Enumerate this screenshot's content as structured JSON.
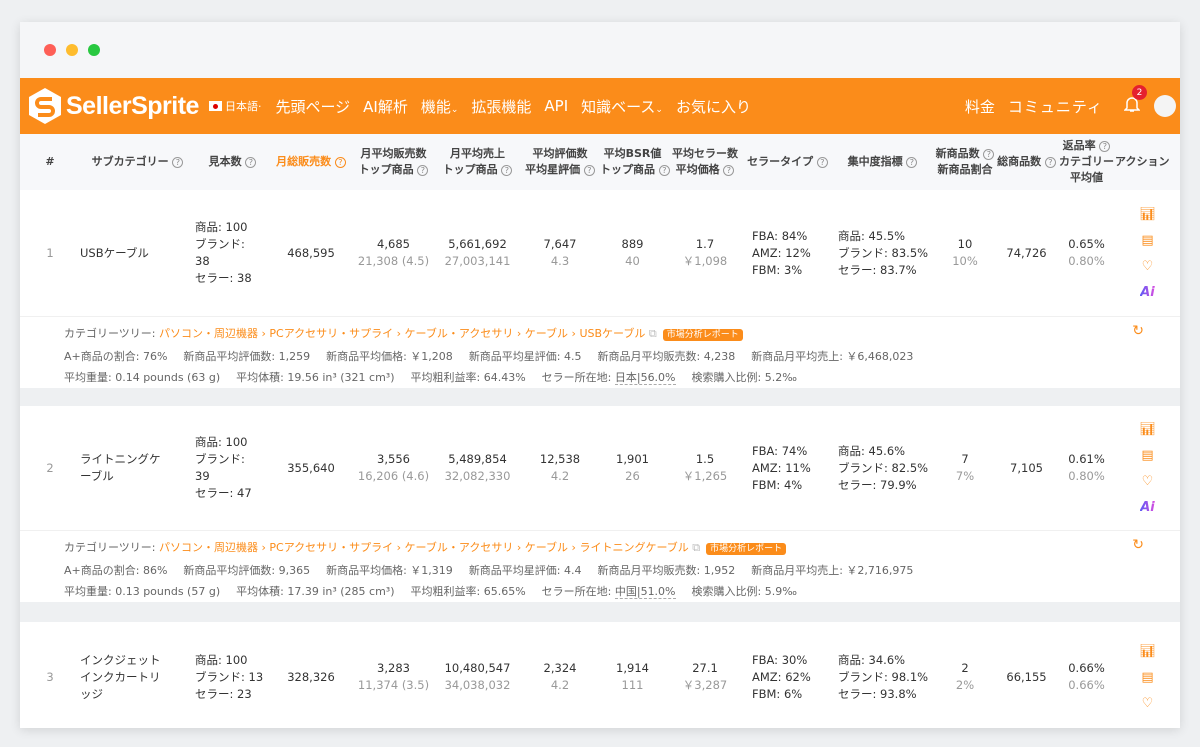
{
  "window": {
    "controls": [
      "close",
      "minimize",
      "maximize"
    ]
  },
  "nav": {
    "brand": "SellerSprite",
    "language": "日本語",
    "items": [
      "先頭ページ",
      "AI解析",
      "機能",
      "拡張機能",
      "API",
      "知識ベース",
      "お気に入り"
    ],
    "right": [
      "料金",
      "コミュニティ"
    ],
    "notifications": "2"
  },
  "header": {
    "cols": [
      "#",
      "サブカテゴリー",
      "見本数",
      "月総販売数",
      "月平均販売数",
      "トップ商品",
      "月平均売上",
      "トップ商品",
      "平均評価数",
      "平均星評価",
      "平均BSR値",
      "トップ商品",
      "平均セラー数",
      "平均価格",
      "セラータイプ",
      "集中度指標",
      "新商品数",
      "新商品割合",
      "総商品数",
      "返品率",
      "カテゴリー",
      "平均値",
      "アクション"
    ]
  },
  "rows": [
    {
      "idx": "1",
      "name": [
        "USBケーブル"
      ],
      "sample": [
        "商品: 100",
        "ブランド:",
        "38",
        "セラー: 38"
      ],
      "total_sales": "468,595",
      "avg_sales": "4,685",
      "avg_sales_top": "21,308 (4.5)",
      "revenue": "5,661,692",
      "revenue_top": "27,003,141",
      "reviews": "7,647",
      "rating": "4.3",
      "bsr": "889",
      "bsr_top": "40",
      "sellers": "1.7",
      "price": "￥1,098",
      "seller_type": [
        "FBA: 84%",
        "AMZ: 12%",
        "FBM: 3%"
      ],
      "concentration": [
        "商品: 45.5%",
        "ブランド: 83.5%",
        "セラー: 83.7%"
      ],
      "new_count": "10",
      "new_ratio": "10%",
      "total_products": "74,726",
      "return_rate": "0.65%",
      "return_cat": "0.80%",
      "tree_label": "カテゴリーツリー: ",
      "tree": "パソコン・周辺機器 › PCアクセサリ・サプライ › ケーブル・アクセサリ › ケーブル › USBケーブル",
      "report": "市場分析レポート",
      "line2": [
        "A+商品の割合: 76%",
        "新商品平均評価数: 1,259",
        "新商品平均価格: ￥1,208",
        "新商品平均星評価: 4.5",
        "新商品月平均販売数: 4,238",
        "新商品月平均売上: ￥6,468,023"
      ],
      "line3": [
        "平均重量: 0.14 pounds (63 g)",
        "平均体積: 19.56 in³ (321 cm³)",
        "平均粗利益率: 64.43%"
      ],
      "seller_loc_label": "セラー所在地: ",
      "seller_loc": "日本|56.0%",
      "search_ratio": "検索購入比例: 5.2‰"
    },
    {
      "idx": "2",
      "name": [
        "ライトニングケ",
        "ーブル"
      ],
      "sample": [
        "商品: 100",
        "ブランド:",
        "39",
        "セラー: 47"
      ],
      "total_sales": "355,640",
      "avg_sales": "3,556",
      "avg_sales_top": "16,206 (4.6)",
      "revenue": "5,489,854",
      "revenue_top": "32,082,330",
      "reviews": "12,538",
      "rating": "4.2",
      "bsr": "1,901",
      "bsr_top": "26",
      "sellers": "1.5",
      "price": "￥1,265",
      "seller_type": [
        "FBA: 74%",
        "AMZ: 11%",
        "FBM: 4%"
      ],
      "concentration": [
        "商品: 45.6%",
        "ブランド: 82.5%",
        "セラー: 79.9%"
      ],
      "new_count": "7",
      "new_ratio": "7%",
      "total_products": "7,105",
      "return_rate": "0.61%",
      "return_cat": "0.80%",
      "tree_label": "カテゴリーツリー: ",
      "tree": "パソコン・周辺機器 › PCアクセサリ・サプライ › ケーブル・アクセサリ › ケーブル › ライトニングケーブル",
      "report": "市場分析レポート",
      "line2": [
        "A+商品の割合: 86%",
        "新商品平均評価数: 9,365",
        "新商品平均価格: ￥1,319",
        "新商品平均星評価: 4.4",
        "新商品月平均販売数: 1,952",
        "新商品月平均売上: ￥2,716,975"
      ],
      "line3": [
        "平均重量: 0.13 pounds (57 g)",
        "平均体積: 17.39 in³ (285 cm³)",
        "平均粗利益率: 65.65%"
      ],
      "seller_loc_label": "セラー所在地: ",
      "seller_loc": "中国|51.0%",
      "search_ratio": "検索購入比例: 5.9‰"
    },
    {
      "idx": "3",
      "name": [
        "インクジェット",
        "インクカートリ",
        "ッジ"
      ],
      "sample": [
        "商品: 100",
        "ブランド: 13",
        "セラー: 23"
      ],
      "total_sales": "328,326",
      "avg_sales": "3,283",
      "avg_sales_top": "11,374 (3.5)",
      "revenue": "10,480,547",
      "revenue_top": "34,038,032",
      "reviews": "2,324",
      "rating": "4.2",
      "bsr": "1,914",
      "bsr_top": "111",
      "sellers": "27.1",
      "price": "￥3,287",
      "seller_type": [
        "FBA: 30%",
        "AMZ: 62%",
        "FBM: 6%"
      ],
      "concentration": [
        "商品: 34.6%",
        "ブランド: 98.1%",
        "セラー: 93.8%"
      ],
      "new_count": "2",
      "new_ratio": "2%",
      "total_products": "66,155",
      "return_rate": "0.66%",
      "return_cat": "0.66%"
    }
  ],
  "colors": {
    "accent": "#fb8c1a",
    "badge": "#e5202e"
  }
}
